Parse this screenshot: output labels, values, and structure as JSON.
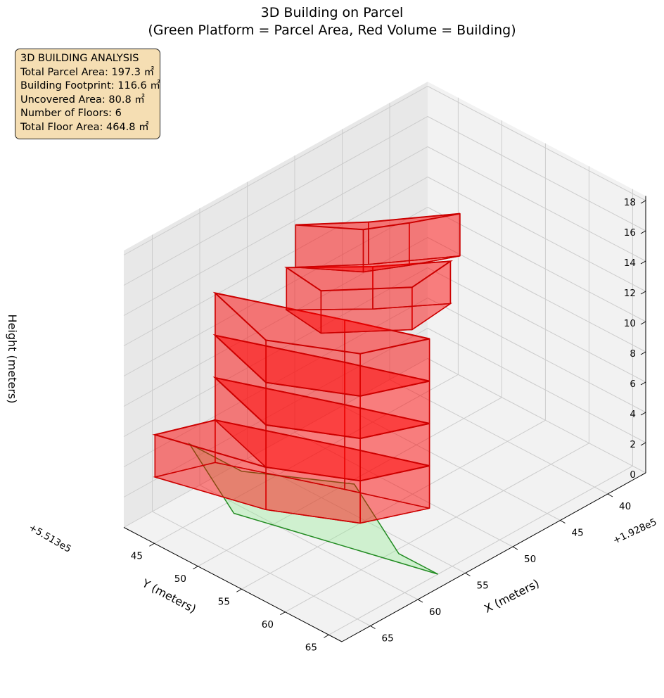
{
  "figure": {
    "title_line1": "3D Building on Parcel",
    "title_line2": "(Green Platform = Parcel Area, Red Volume = Building)"
  },
  "info_box": {
    "heading": "3D BUILDING ANALYSIS",
    "lines": [
      "Total Parcel Area: 197.3 ㎡",
      "Building Footprint: 116.6 ㎡",
      "Uncovered Area: 80.8 ㎡",
      "Number of Floors: 6",
      "Total Floor Area: 464.8 ㎡"
    ]
  },
  "colors": {
    "parcel_fill": "#90ee90",
    "parcel_edge": "#228b22",
    "building_fill": "#ff0000",
    "building_edge": "#cc0000",
    "info_box_bg": "#f5deb3",
    "pane_light": "#f2f2f2",
    "pane_dark": "#e8e8e8",
    "grid": "#cccccc"
  },
  "chart_data": {
    "type": "3d-polygons",
    "title": "3D Building on Parcel\n(Green Platform = Parcel Area, Red Volume = Building)",
    "axes": {
      "x": {
        "label": "X (meters)",
        "offset_label": "+1.928e5",
        "ticks": [
          40,
          45,
          50,
          55,
          60,
          65
        ],
        "tick_labels": [
          "40",
          "45",
          "50",
          "55",
          "60",
          "65"
        ],
        "range": [
          36,
          68
        ]
      },
      "y": {
        "label": "Y (meters)",
        "offset_label": "+5.513e5",
        "ticks": [
          45,
          50,
          55,
          60,
          65
        ],
        "tick_labels": [
          "45",
          "50",
          "55",
          "60",
          "65"
        ],
        "range": [
          41.5,
          66.5
        ]
      },
      "z": {
        "label": "Height (meters)",
        "ticks": [
          0,
          2,
          4,
          6,
          8,
          10,
          12,
          14,
          16,
          18
        ],
        "tick_labels": [
          "0",
          "2",
          "4",
          "6",
          "8",
          "10",
          "12",
          "14",
          "16",
          "18"
        ],
        "range": [
          0,
          18.3
        ]
      }
    },
    "grid": true,
    "view": {
      "elevation_deg": 25,
      "azimuth_deg": 45
    },
    "parcel_polygon": {
      "name": "Parcel Area",
      "z": 0,
      "xy": [
        [
          61,
          46.5
        ],
        [
          56.5,
          65
        ],
        [
          56.5,
          60.5
        ],
        [
          52,
          50.5
        ],
        [
          56.5,
          42.5
        ],
        [
          56.5,
          36.5
        ]
      ]
    },
    "building_floors": [
      {
        "floor": 1,
        "z": [
          0,
          2.8
        ],
        "xy": [
          [
            59,
            48
          ],
          [
            55.5,
            55
          ],
          [
            50.5,
            57.5
          ],
          [
            53,
            50.5
          ],
          [
            57,
            40
          ],
          [
            61.5,
            38
          ]
        ]
      },
      {
        "floor": 2,
        "z": [
          2.8,
          5.6
        ],
        "xy": [
          [
            59,
            48
          ],
          [
            55.5,
            55
          ],
          [
            50.5,
            57.5
          ],
          [
            53,
            50.5
          ],
          [
            57,
            40
          ]
        ]
      },
      {
        "floor": 3,
        "z": [
          5.6,
          8.4
        ],
        "xy": [
          [
            59,
            48
          ],
          [
            55.5,
            55
          ],
          [
            50.5,
            57.5
          ],
          [
            53,
            50.5
          ],
          [
            57,
            40
          ]
        ]
      },
      {
        "floor": 4,
        "z": [
          8.4,
          11.2
        ],
        "xy": [
          [
            59,
            48
          ],
          [
            55.5,
            55
          ],
          [
            50.5,
            57.5
          ],
          [
            53,
            50.5
          ],
          [
            57,
            40
          ]
        ]
      },
      {
        "floor": 5,
        "z": [
          11.2,
          14.0
        ],
        "xy": [
          [
            55.5,
            50.5
          ],
          [
            50.5,
            55.5
          ],
          [
            46,
            55
          ],
          [
            50.5,
            51
          ],
          [
            55,
            46
          ]
        ]
      },
      {
        "floor": 6,
        "z": [
          14.0,
          16.8
        ],
        "xy": [
          [
            51.5,
            51
          ],
          [
            48.5,
            53
          ],
          [
            45,
            55
          ],
          [
            50.5,
            50.5
          ],
          [
            54.5,
            46.5
          ]
        ]
      }
    ]
  }
}
